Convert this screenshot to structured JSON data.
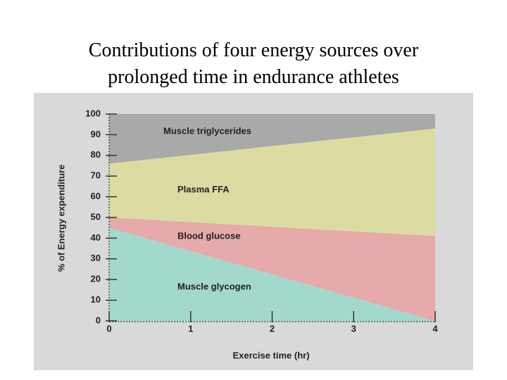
{
  "chart_data": {
    "type": "stacked-area",
    "title": [
      "Contributions of four energy sources over",
      "prolonged time in endurance athletes"
    ],
    "xlabel": "Exercise time (hr)",
    "ylabel": "% of Energy expenditure",
    "x": [
      0,
      4
    ],
    "series": [
      {
        "name": "Muscle glycogen",
        "color": "#a3d9cc",
        "values": [
          45,
          0
        ]
      },
      {
        "name": "Blood glucose",
        "color": "#e6aaaa",
        "values": [
          5,
          41
        ]
      },
      {
        "name": "Plasma FFA",
        "color": "#dcdca2",
        "values": [
          26,
          52
        ]
      },
      {
        "name": "Muscle triglycerides",
        "color": "#a9a9a9",
        "values": [
          24,
          7
        ]
      }
    ],
    "xlim": [
      0,
      4
    ],
    "xticks": [
      0,
      1,
      2,
      3,
      4
    ],
    "ylim": [
      0,
      100
    ],
    "yticks": [
      0,
      10,
      20,
      30,
      40,
      50,
      60,
      70,
      80,
      90,
      100
    ]
  }
}
